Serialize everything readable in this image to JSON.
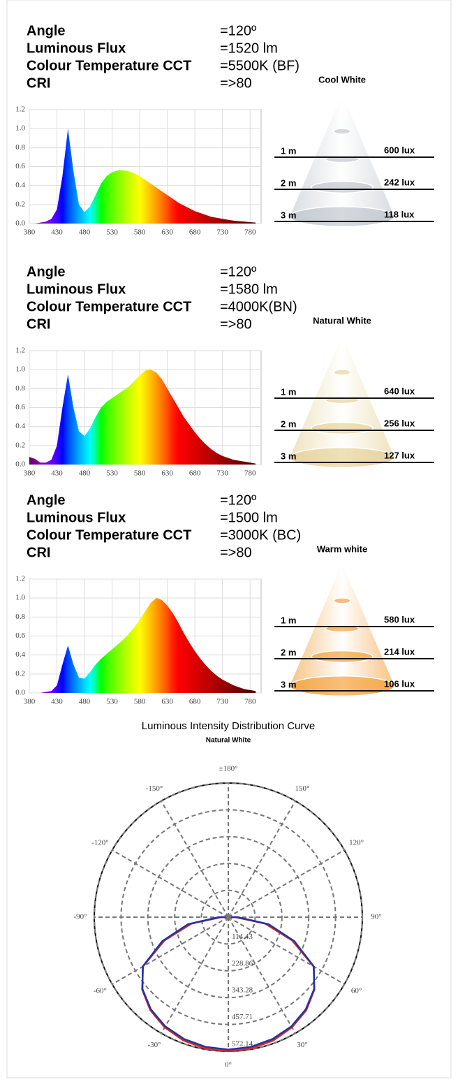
{
  "sections": [
    {
      "specs": [
        {
          "label": "Angle",
          "value": "=120º"
        },
        {
          "label": "Luminous Flux",
          "value": "=1520 lm"
        },
        {
          "label": "Colour Temperature CCT",
          "value": "=5500K (BF)"
        },
        {
          "label": "CRI",
          "value": "=>80"
        }
      ],
      "cone": {
        "title": "Cool White",
        "color": "#b9c0c8",
        "rows": [
          {
            "distance": "1 m",
            "lux": "600 lux"
          },
          {
            "distance": "2 m",
            "lux": "242 lux"
          },
          {
            "distance": "3 m",
            "lux": "118 lux"
          }
        ]
      }
    },
    {
      "specs": [
        {
          "label": "Angle",
          "value": "=120º"
        },
        {
          "label": "Luminous Flux",
          "value": "=1580 lm"
        },
        {
          "label": "Colour Temperature CCT",
          "value": "=4000K(BN)"
        },
        {
          "label": "CRI",
          "value": "=>80"
        }
      ],
      "cone": {
        "title": "Natural White",
        "color": "#e2cc8a",
        "rows": [
          {
            "distance": "1 m",
            "lux": "640 lux"
          },
          {
            "distance": "2 m",
            "lux": "256 lux"
          },
          {
            "distance": "3 m",
            "lux": "127 lux"
          }
        ]
      }
    },
    {
      "specs": [
        {
          "label": "Angle",
          "value": "=120º"
        },
        {
          "label": "Luminous Flux",
          "value": "=1500 lm"
        },
        {
          "label": "Colour Temperature CCT",
          "value": "=3000K  (BC)"
        },
        {
          "label": "CRI",
          "value": "=>80"
        }
      ],
      "cone": {
        "title": "Warm white",
        "color": "#f29420",
        "rows": [
          {
            "distance": "1 m",
            "lux": "580 lux"
          },
          {
            "distance": "2 m",
            "lux": "214 lux"
          },
          {
            "distance": "3 m",
            "lux": "106 lux"
          }
        ]
      }
    }
  ],
  "chart_data": [
    {
      "type": "area",
      "grid": true,
      "xlim": [
        380,
        800
      ],
      "ylim": [
        0,
        1.2
      ],
      "xticks": [
        380,
        430,
        480,
        530,
        580,
        630,
        680,
        730,
        780
      ],
      "yticks": [
        {
          "value": 0,
          "label": "0.0"
        },
        0.2,
        0.4,
        0.6,
        0.8,
        {
          "value": 1,
          "label": "1.0"
        },
        1.2
      ],
      "x": [
        380,
        390,
        400,
        410,
        420,
        430,
        440,
        450,
        460,
        470,
        480,
        490,
        500,
        510,
        520,
        530,
        540,
        550,
        560,
        570,
        580,
        590,
        600,
        610,
        620,
        630,
        640,
        650,
        660,
        670,
        680,
        690,
        700,
        710,
        720,
        730,
        740,
        750,
        760,
        770,
        780,
        790
      ],
      "values": [
        0,
        0,
        0.01,
        0.02,
        0.05,
        0.15,
        0.5,
        1.0,
        0.55,
        0.2,
        0.12,
        0.18,
        0.3,
        0.42,
        0.5,
        0.54,
        0.56,
        0.56,
        0.55,
        0.53,
        0.5,
        0.46,
        0.42,
        0.38,
        0.34,
        0.3,
        0.26,
        0.22,
        0.19,
        0.16,
        0.13,
        0.11,
        0.09,
        0.07,
        0.06,
        0.05,
        0.04,
        0.03,
        0.025,
        0.02,
        0.015,
        0.01
      ]
    },
    {
      "type": "area",
      "grid": true,
      "xlim": [
        380,
        800
      ],
      "ylim": [
        0,
        1.2
      ],
      "xticks": [
        380,
        430,
        480,
        530,
        580,
        630,
        680,
        730,
        780
      ],
      "yticks": [
        {
          "value": 0,
          "label": "0.0"
        },
        0.2,
        0.4,
        0.6,
        0.8,
        {
          "value": 1,
          "label": "1.0"
        },
        1.2
      ],
      "x": [
        380,
        390,
        400,
        410,
        420,
        430,
        440,
        450,
        460,
        470,
        480,
        490,
        500,
        510,
        520,
        530,
        540,
        550,
        560,
        570,
        580,
        590,
        600,
        610,
        620,
        630,
        640,
        650,
        660,
        670,
        680,
        690,
        700,
        710,
        720,
        730,
        740,
        750,
        760,
        770,
        780,
        790
      ],
      "values": [
        0.08,
        0.06,
        0.02,
        0.02,
        0.05,
        0.2,
        0.6,
        0.95,
        0.6,
        0.35,
        0.3,
        0.38,
        0.5,
        0.6,
        0.66,
        0.7,
        0.74,
        0.78,
        0.82,
        0.88,
        0.94,
        0.99,
        1.0,
        0.97,
        0.9,
        0.8,
        0.7,
        0.6,
        0.5,
        0.42,
        0.34,
        0.27,
        0.21,
        0.16,
        0.12,
        0.09,
        0.07,
        0.05,
        0.04,
        0.03,
        0.02,
        0.01
      ]
    },
    {
      "type": "area",
      "grid": true,
      "xlim": [
        380,
        800
      ],
      "ylim": [
        0,
        1.2
      ],
      "xticks": [
        380,
        430,
        480,
        530,
        580,
        630,
        680,
        730,
        780
      ],
      "yticks": [
        {
          "value": 0,
          "label": "0.0"
        },
        0.2,
        0.4,
        0.6,
        0.8,
        {
          "value": 1,
          "label": "1.0"
        },
        1.2
      ],
      "x": [
        380,
        390,
        400,
        410,
        420,
        430,
        440,
        450,
        460,
        470,
        480,
        490,
        500,
        510,
        520,
        530,
        540,
        550,
        560,
        570,
        580,
        590,
        600,
        610,
        620,
        630,
        640,
        650,
        660,
        670,
        680,
        690,
        700,
        710,
        720,
        730,
        740,
        750,
        760,
        770,
        780,
        790
      ],
      "values": [
        0,
        0,
        0,
        0.01,
        0.02,
        0.08,
        0.3,
        0.5,
        0.3,
        0.16,
        0.15,
        0.22,
        0.3,
        0.36,
        0.41,
        0.46,
        0.51,
        0.56,
        0.62,
        0.69,
        0.77,
        0.86,
        0.95,
        1.0,
        0.98,
        0.92,
        0.84,
        0.74,
        0.63,
        0.53,
        0.44,
        0.36,
        0.29,
        0.23,
        0.18,
        0.14,
        0.11,
        0.08,
        0.06,
        0.04,
        0.03,
        0.02
      ]
    },
    {
      "type": "polar",
      "title": "Luminous Intensity Distribution Curve",
      "subtitle": "Natural White",
      "angle_ticks": [
        {
          "value": 0,
          "label": "0°"
        },
        {
          "value": 30,
          "label": "30°"
        },
        {
          "value": 60,
          "label": "60°"
        },
        {
          "value": 90,
          "label": "90°"
        },
        {
          "value": 120,
          "label": "120°"
        },
        {
          "value": 150,
          "label": "150°"
        },
        {
          "value": 180,
          "label": "±180°"
        },
        {
          "value": -150,
          "label": "-150°"
        },
        {
          "value": -120,
          "label": "-120°"
        },
        {
          "value": -90,
          "label": "-90°"
        },
        {
          "value": -60,
          "label": "-60°"
        },
        {
          "value": -30,
          "label": "-30°"
        }
      ],
      "rlim": [
        0,
        572.14
      ],
      "rticks": [
        114.43,
        228.86,
        343.28,
        457.71,
        572.14
      ],
      "angles": [
        -90,
        -80,
        -70,
        -60,
        -50,
        -40,
        -30,
        -20,
        -10,
        0,
        10,
        20,
        30,
        40,
        50,
        60,
        70,
        80,
        90
      ],
      "series": [
        {
          "color": "#d62828",
          "values": [
            30,
            160,
            290,
            420,
            480,
            518,
            543,
            560,
            569,
            572,
            569,
            560,
            543,
            518,
            480,
            420,
            290,
            160,
            30
          ]
        },
        {
          "color": "#2433a0",
          "values": [
            40,
            175,
            300,
            422,
            478,
            514,
            538,
            553,
            562,
            565,
            562,
            553,
            538,
            514,
            478,
            422,
            300,
            175,
            40
          ]
        }
      ]
    }
  ]
}
